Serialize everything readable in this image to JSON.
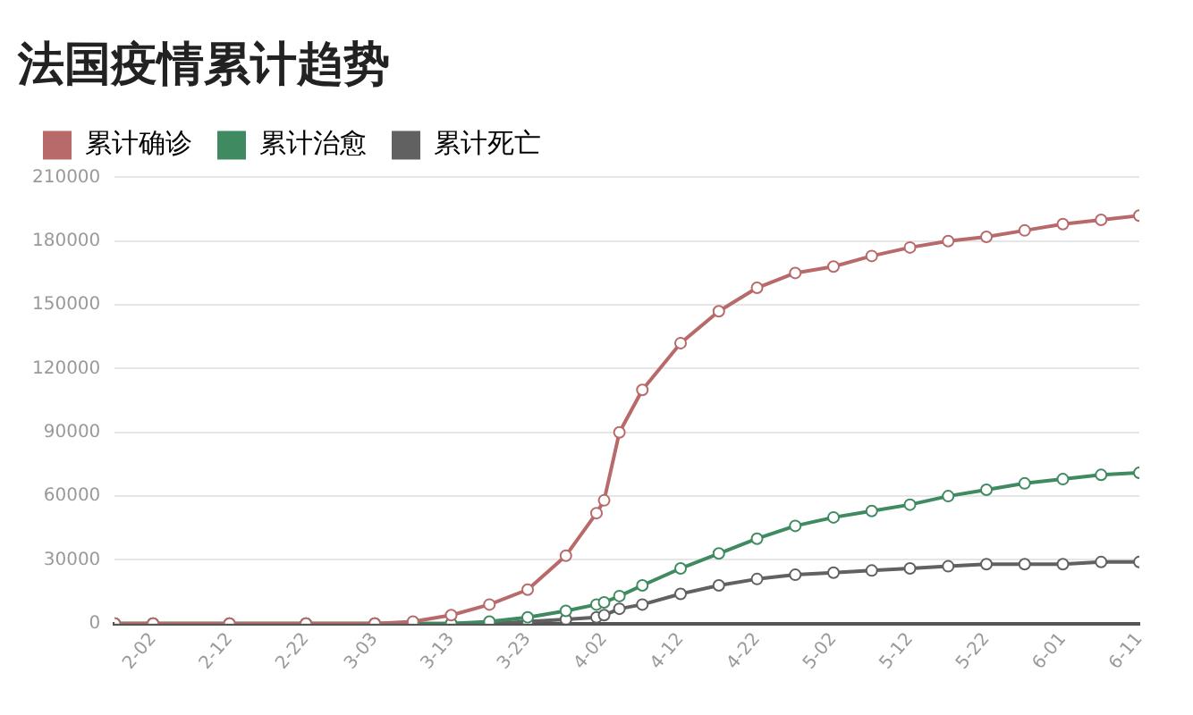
{
  "chart_data": {
    "type": "line",
    "title": "法国疫情累计趋势",
    "x": [
      "--01-28",
      "--02-02",
      "--02-12",
      "--02-22",
      "--03-03",
      "--03-08",
      "--03-13",
      "--03-18",
      "--03-23",
      "--03-28",
      "--04-01",
      "--04-02",
      "--04-04",
      "--04-07",
      "--04-12",
      "--04-17",
      "--04-22",
      "--04-27",
      "--05-02",
      "--05-07",
      "--05-12",
      "--05-17",
      "--05-22",
      "--05-27",
      "--06-01",
      "--06-06",
      "--06-11"
    ],
    "series": [
      {
        "name": "累计确诊",
        "color": "#b86a6a",
        "values": [
          0,
          0,
          0,
          0,
          0,
          1000,
          4000,
          9000,
          16000,
          32000,
          52000,
          58000,
          90000,
          110000,
          132000,
          147000,
          158000,
          165000,
          168000,
          173000,
          177000,
          180000,
          182000,
          185000,
          188000,
          190000,
          192000
        ]
      },
      {
        "name": "累计治愈",
        "color": "#3f8a60",
        "values": [
          0,
          0,
          0,
          0,
          0,
          0,
          0,
          1000,
          3000,
          6000,
          9000,
          10000,
          13000,
          18000,
          26000,
          33000,
          40000,
          46000,
          50000,
          53000,
          56000,
          60000,
          63000,
          66000,
          68000,
          70000,
          71000
        ]
      },
      {
        "name": "累计死亡",
        "color": "#616161",
        "values": [
          0,
          0,
          0,
          0,
          0,
          0,
          0,
          0,
          1000,
          2000,
          3000,
          4000,
          7000,
          9000,
          14000,
          18000,
          21000,
          23000,
          24000,
          25000,
          26000,
          27000,
          28000,
          28000,
          28000,
          29000,
          29000
        ]
      }
    ],
    "xlim": [
      "--01-28",
      "--06-11"
    ],
    "xticks": [
      {
        "value": "--02-02",
        "label": "2-02"
      },
      {
        "value": "--02-12",
        "label": "2-12"
      },
      {
        "value": "--02-22",
        "label": "2-22"
      },
      {
        "value": "--03-03",
        "label": "3-03"
      },
      {
        "value": "--03-13",
        "label": "3-13"
      },
      {
        "value": "--03-23",
        "label": "3-23"
      },
      {
        "value": "--04-02",
        "label": "4-02"
      },
      {
        "value": "--04-12",
        "label": "4-12"
      },
      {
        "value": "--04-22",
        "label": "4-22"
      },
      {
        "value": "--05-02",
        "label": "5-02"
      },
      {
        "value": "--05-12",
        "label": "5-12"
      },
      {
        "value": "--05-22",
        "label": "5-22"
      },
      {
        "value": "--06-01",
        "label": "6-01"
      },
      {
        "value": "--06-11",
        "label": "6-11"
      }
    ],
    "ylim": [
      0,
      210000
    ],
    "yticks": [
      0,
      30000,
      60000,
      90000,
      120000,
      150000,
      180000,
      210000
    ],
    "grid": "y",
    "legend": "top left",
    "marker": "circle",
    "line_style": "solid"
  }
}
